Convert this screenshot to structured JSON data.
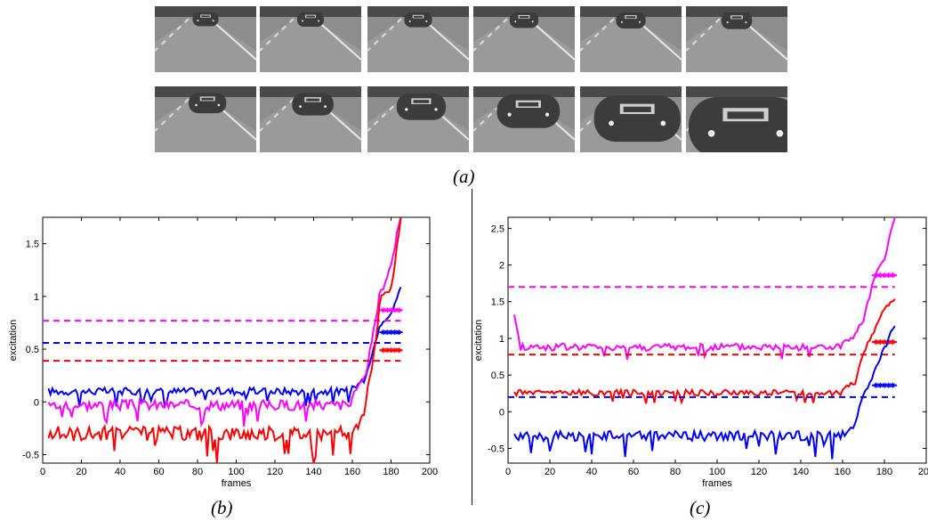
{
  "labels": {
    "a": "(a)",
    "b": "(b)",
    "c": "(c)"
  },
  "thumbnails": {
    "icon": "road-car-frame-thumbnail",
    "row1": [
      0.1,
      0.11,
      0.12,
      0.13,
      0.14,
      0.15
    ],
    "row2": [
      0.22,
      0.26,
      0.34,
      0.48,
      0.72,
      1.0
    ]
  },
  "chart_data": [
    {
      "type": "line",
      "xlabel": "frames",
      "ylabel": "excitation",
      "xlim": [
        0,
        200
      ],
      "ylim": [
        -0.58,
        1.75
      ],
      "xticks": [
        0,
        20,
        40,
        60,
        80,
        100,
        120,
        140,
        160,
        180,
        200
      ],
      "yticks": [
        -0.5,
        0,
        0.5,
        1,
        1.5
      ],
      "ytick_labels": [
        "-0.5",
        "0",
        "0.5",
        "1",
        "1.5"
      ],
      "series": [
        {
          "color": "#0000ff",
          "base": 0.1,
          "jitter": 0.035,
          "x": [
            3,
            185
          ],
          "rise": [
            [
              160,
              0.13
            ],
            [
              166,
              0.2
            ],
            [
              170,
              0.45
            ],
            [
              175,
              0.75
            ],
            [
              180,
              0.85
            ],
            [
              185,
              1.1
            ]
          ],
          "threshold": 0.56,
          "marker_y": 0.66
        },
        {
          "color": "#ff00ff",
          "base": -0.03,
          "jitter": 0.05,
          "x": [
            3,
            185
          ],
          "rise": [
            [
              160,
              0.05
            ],
            [
              166,
              0.2
            ],
            [
              170,
              0.55
            ],
            [
              174,
              1.0
            ],
            [
              180,
              1.3
            ],
            [
              185,
              1.75
            ]
          ],
          "threshold": 0.77,
          "marker_y": 0.87
        },
        {
          "color": "#ff0000",
          "base": -0.3,
          "jitter": 0.07,
          "x": [
            3,
            185
          ],
          "rise": [
            [
              160,
              -0.28
            ],
            [
              166,
              -0.15
            ],
            [
              170,
              0.35
            ],
            [
              175,
              1.0
            ],
            [
              180,
              1.05
            ],
            [
              185,
              1.7
            ]
          ],
          "threshold": 0.39,
          "marker_y": 0.49
        }
      ]
    },
    {
      "type": "line",
      "xlabel": "frames",
      "ylabel": "excitation",
      "xlim": [
        0,
        200
      ],
      "ylim": [
        -0.7,
        2.65
      ],
      "xticks": [
        0,
        20,
        40,
        60,
        80,
        100,
        120,
        140,
        160,
        180,
        200
      ],
      "yticks": [
        -0.5,
        0,
        0.5,
        1,
        1.5,
        2,
        2.5
      ],
      "ytick_labels": [
        "-0.5",
        "0",
        "0.5",
        "1",
        "1.5",
        "2",
        "2.5"
      ],
      "series": [
        {
          "color": "#ff00ff",
          "base": 0.88,
          "jitter": 0.05,
          "x": [
            3,
            185
          ],
          "rise": [
            [
              160,
              0.92
            ],
            [
              166,
              1.05
            ],
            [
              170,
              1.25
            ],
            [
              175,
              1.8
            ],
            [
              180,
              2.1
            ],
            [
              185,
              2.65
            ]
          ],
          "threshold": 1.7,
          "marker_y": 1.86,
          "start_spike": 1.32
        },
        {
          "color": "#ff0000",
          "base": 0.26,
          "jitter": 0.04,
          "x": [
            3,
            185
          ],
          "rise": [
            [
              160,
              0.3
            ],
            [
              166,
              0.4
            ],
            [
              170,
              0.8
            ],
            [
              175,
              1.1
            ],
            [
              180,
              1.4
            ],
            [
              185,
              1.55
            ]
          ],
          "threshold": 0.78,
          "marker_y": 0.95
        },
        {
          "color": "#0000ff",
          "base": -0.33,
          "jitter": 0.07,
          "x": [
            3,
            185
          ],
          "rise": [
            [
              160,
              -0.3
            ],
            [
              166,
              -0.2
            ],
            [
              170,
              0.25
            ],
            [
              175,
              0.55
            ],
            [
              180,
              0.85
            ],
            [
              185,
              1.2
            ]
          ],
          "threshold": 0.2,
          "marker_y": 0.36
        }
      ]
    }
  ]
}
